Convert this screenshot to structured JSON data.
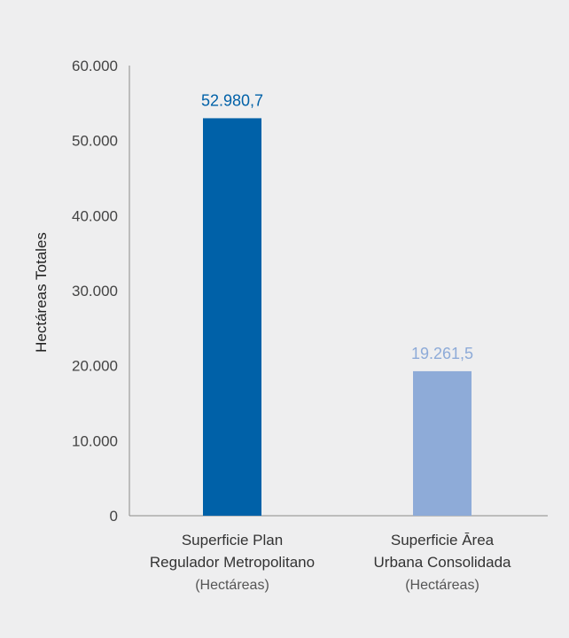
{
  "chart_data": {
    "type": "bar",
    "title": "",
    "xlabel": "",
    "ylabel": "Hectáreas Totales",
    "ylim": [
      0,
      60000
    ],
    "yticks": [
      {
        "value": 0,
        "label": "0"
      },
      {
        "value": 10000,
        "label": "10.000"
      },
      {
        "value": 20000,
        "label": "20.000"
      },
      {
        "value": 30000,
        "label": "30.000"
      },
      {
        "value": 40000,
        "label": "40.000"
      },
      {
        "value": 50000,
        "label": "50.000"
      },
      {
        "value": 60000,
        "label": "60.000"
      }
    ],
    "categories": [
      {
        "lines": [
          "Superficie Plan",
          "Regulador Metropolitano"
        ],
        "sub": "(Hectáreas)"
      },
      {
        "lines": [
          "Superficie Ārea",
          "Urbana Consolidada"
        ],
        "sub": "(Hectáreas)"
      }
    ],
    "values": [
      52980.7,
      19261.5
    ],
    "data_labels": [
      "52.980,7",
      "19.261,5"
    ],
    "colors": [
      "#0061a8",
      "#8eabd8"
    ],
    "grid": false,
    "legend": "none"
  }
}
